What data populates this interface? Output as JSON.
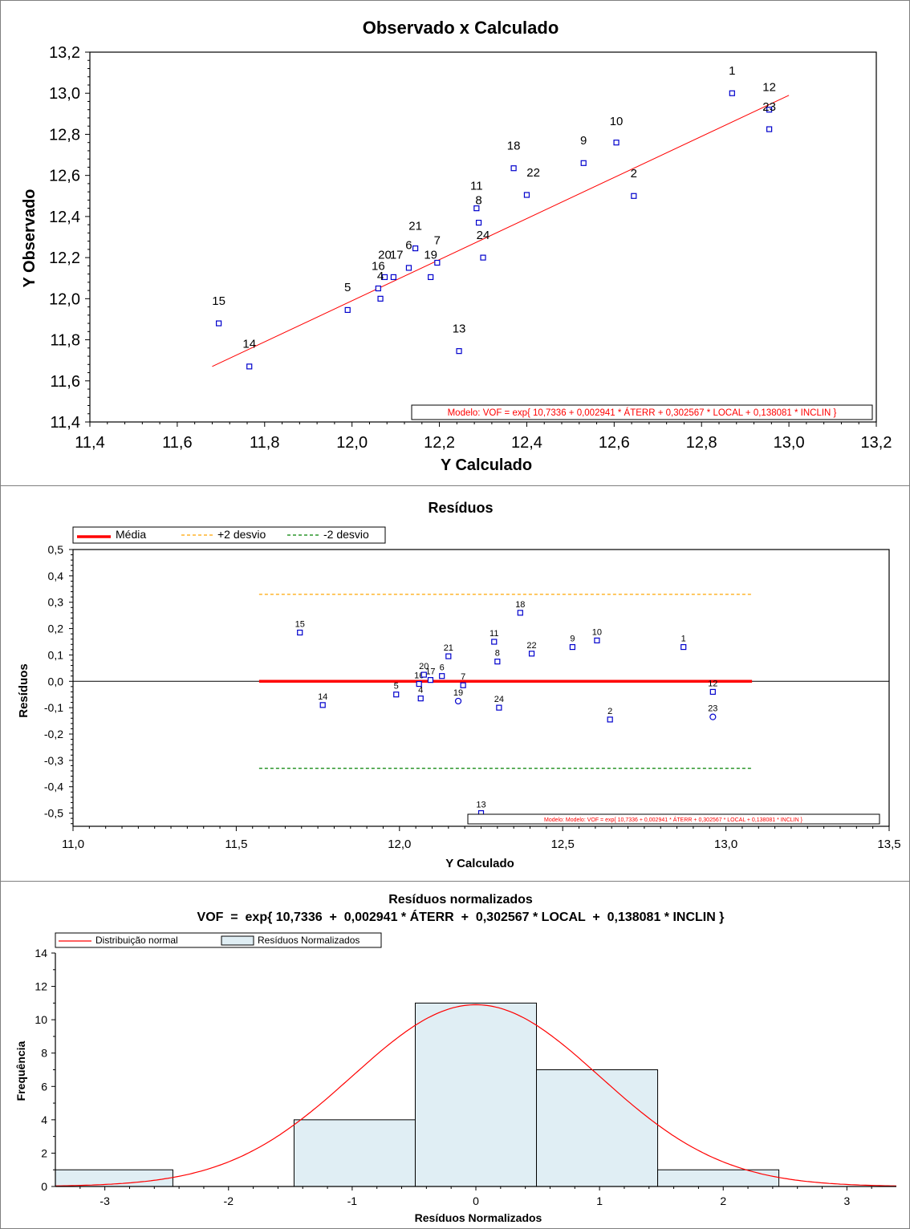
{
  "chart_data": [
    {
      "type": "scatter",
      "title": "Observado x Calculado",
      "xlabel": "Y Calculado",
      "ylabel": "Y Observado",
      "xlim": [
        11.4,
        13.2
      ],
      "ylim": [
        11.4,
        13.2
      ],
      "xticks": [
        "11,4",
        "11,6",
        "11,8",
        "12,0",
        "12,2",
        "12,4",
        "12,6",
        "12,8",
        "13,0",
        "13,2"
      ],
      "yticks": [
        "11,4",
        "11,6",
        "11,8",
        "12,0",
        "12,2",
        "12,4",
        "12,6",
        "12,8",
        "13,0",
        "13,2"
      ],
      "model_label": "Modelo: VOF  =  exp{ 10,7336  +  0,002941 * ÁTERR  +  0,302567 * LOCAL  +  0,138081 * INCLIN }",
      "fit_line": {
        "x": [
          11.68,
          13.0
        ],
        "y": [
          11.67,
          12.99
        ]
      },
      "points": [
        {
          "label": "1",
          "x": 12.87,
          "y": 13.0
        },
        {
          "label": "2",
          "x": 12.645,
          "y": 12.5
        },
        {
          "label": "4",
          "x": 12.065,
          "y": 12.0
        },
        {
          "label": "5",
          "x": 11.99,
          "y": 11.945
        },
        {
          "label": "6",
          "x": 12.13,
          "y": 12.15
        },
        {
          "label": "7",
          "x": 12.195,
          "y": 12.175
        },
        {
          "label": "8",
          "x": 12.29,
          "y": 12.37
        },
        {
          "label": "9",
          "x": 12.53,
          "y": 12.66
        },
        {
          "label": "10",
          "x": 12.605,
          "y": 12.76
        },
        {
          "label": "11",
          "x": 12.285,
          "y": 12.44
        },
        {
          "label": "12",
          "x": 12.955,
          "y": 12.92
        },
        {
          "label": "13",
          "x": 12.245,
          "y": 11.745
        },
        {
          "label": "14",
          "x": 11.765,
          "y": 11.67
        },
        {
          "label": "15",
          "x": 11.695,
          "y": 11.88
        },
        {
          "label": "16",
          "x": 12.06,
          "y": 12.05
        },
        {
          "label": "17",
          "x": 12.095,
          "y": 12.105
        },
        {
          "label": "18",
          "x": 12.37,
          "y": 12.635
        },
        {
          "label": "19",
          "x": 12.18,
          "y": 12.105
        },
        {
          "label": "20",
          "x": 12.075,
          "y": 12.105
        },
        {
          "label": "21",
          "x": 12.145,
          "y": 12.245
        },
        {
          "label": "22",
          "x": 12.4,
          "y": 12.505
        },
        {
          "label": "23",
          "x": 12.955,
          "y": 12.825
        },
        {
          "label": "24",
          "x": 12.3,
          "y": 12.2
        }
      ],
      "point_labels": [
        {
          "text": "1",
          "x": 12.87,
          "y": 13.11
        },
        {
          "text": "12",
          "x": 12.955,
          "y": 13.03
        },
        {
          "text": "23",
          "x": 12.955,
          "y": 12.935
        },
        {
          "text": "10",
          "x": 12.605,
          "y": 12.865
        },
        {
          "text": "9",
          "x": 12.53,
          "y": 12.77
        },
        {
          "text": "18",
          "x": 12.37,
          "y": 12.745
        },
        {
          "text": "22",
          "x": 12.415,
          "y": 12.615
        },
        {
          "text": "2",
          "x": 12.645,
          "y": 12.61
        },
        {
          "text": "11",
          "x": 12.285,
          "y": 12.55
        },
        {
          "text": "8",
          "x": 12.29,
          "y": 12.48
        },
        {
          "text": "21",
          "x": 12.145,
          "y": 12.355
        },
        {
          "text": "7",
          "x": 12.195,
          "y": 12.285
        },
        {
          "text": "24",
          "x": 12.3,
          "y": 12.31
        },
        {
          "text": "6",
          "x": 12.13,
          "y": 12.26
        },
        {
          "text": "20",
          "x": 12.075,
          "y": 12.215
        },
        {
          "text": "17",
          "x": 12.102,
          "y": 12.215
        },
        {
          "text": "19",
          "x": 12.18,
          "y": 12.215
        },
        {
          "text": "16",
          "x": 12.06,
          "y": 12.16
        },
        {
          "text": "4",
          "x": 12.065,
          "y": 12.11
        },
        {
          "text": "5",
          "x": 11.99,
          "y": 12.055
        },
        {
          "text": "15",
          "x": 11.695,
          "y": 11.99
        },
        {
          "text": "13",
          "x": 12.245,
          "y": 11.855
        },
        {
          "text": "14",
          "x": 11.765,
          "y": 11.78
        }
      ],
      "colors": {
        "points": "#0000cc",
        "line": "#ff0000",
        "model_text": "#ff0000"
      }
    },
    {
      "type": "scatter",
      "title": "Resíduos",
      "xlabel": "Y Calculado",
      "ylabel": "Resíduos",
      "xlim": [
        11.0,
        13.5
      ],
      "ylim": [
        -0.55,
        0.5
      ],
      "xticks": [
        "11,0",
        "11,5",
        "12,0",
        "12,5",
        "13,0",
        "13,5"
      ],
      "yticks": [
        "0,5",
        "0,4",
        "0,3",
        "0,2",
        "0,1",
        "0,0",
        "-0,1",
        "-0,2",
        "-0,3",
        "-0,4",
        "-0,5"
      ],
      "legend": {
        "mean": "Média",
        "plus": "+2 desvio",
        "minus": "-2 desvio",
        "position": "top-left"
      },
      "model_label": "Modelo: Modelo: VOF  =  exp{ 10,7336  +  0,002941 * ÁTERR  +  0,302567 * LOCAL  +  0,138081 * INCLIN }",
      "mean_line": {
        "y": 0.0,
        "x": [
          11.57,
          13.08
        ]
      },
      "plus_line": {
        "y": 0.33,
        "x": [
          11.57,
          13.08
        ]
      },
      "minus_line": {
        "y": -0.33,
        "x": [
          11.57,
          13.08
        ]
      },
      "points": [
        {
          "label": "1",
          "x": 12.87,
          "y": 0.13,
          "shape": "square"
        },
        {
          "label": "2",
          "x": 12.645,
          "y": -0.145,
          "shape": "square"
        },
        {
          "label": "4",
          "x": 12.065,
          "y": -0.065,
          "shape": "square"
        },
        {
          "label": "5",
          "x": 11.99,
          "y": -0.05,
          "shape": "square"
        },
        {
          "label": "6",
          "x": 12.13,
          "y": 0.02,
          "shape": "square"
        },
        {
          "label": "7",
          "x": 12.195,
          "y": -0.015,
          "shape": "square"
        },
        {
          "label": "8",
          "x": 12.3,
          "y": 0.075,
          "shape": "square"
        },
        {
          "label": "9",
          "x": 12.53,
          "y": 0.13,
          "shape": "square"
        },
        {
          "label": "10",
          "x": 12.605,
          "y": 0.155,
          "shape": "square"
        },
        {
          "label": "11",
          "x": 12.29,
          "y": 0.15,
          "shape": "square"
        },
        {
          "label": "12",
          "x": 12.96,
          "y": -0.04,
          "shape": "square"
        },
        {
          "label": "13",
          "x": 12.25,
          "y": -0.5,
          "shape": "square"
        },
        {
          "label": "14",
          "x": 11.765,
          "y": -0.09,
          "shape": "square"
        },
        {
          "label": "15",
          "x": 11.695,
          "y": 0.185,
          "shape": "square"
        },
        {
          "label": "16",
          "x": 12.06,
          "y": -0.01,
          "shape": "square"
        },
        {
          "label": "17",
          "x": 12.095,
          "y": 0.005,
          "shape": "square"
        },
        {
          "label": "18",
          "x": 12.37,
          "y": 0.26,
          "shape": "square"
        },
        {
          "label": "19",
          "x": 12.18,
          "y": -0.075,
          "shape": "circle"
        },
        {
          "label": "20",
          "x": 12.075,
          "y": 0.025,
          "shape": "square"
        },
        {
          "label": "21",
          "x": 12.15,
          "y": 0.095,
          "shape": "square"
        },
        {
          "label": "22",
          "x": 12.405,
          "y": 0.105,
          "shape": "square"
        },
        {
          "label": "23",
          "x": 12.96,
          "y": -0.135,
          "shape": "circle"
        },
        {
          "label": "24",
          "x": 12.305,
          "y": -0.1,
          "shape": "square"
        }
      ],
      "colors": {
        "points": "#0000cc",
        "mean": "#ff0000",
        "plus": "#ffa500",
        "minus": "#008000"
      }
    },
    {
      "type": "bar",
      "title": "Resíduos normalizados",
      "subtitle": "VOF  =  exp{ 10,7336  +  0,002941 * ÁTERR  +  0,302567 * LOCAL  +  0,138081 * INCLIN }",
      "xlabel": "Resíduos Normalizados",
      "ylabel": "Frequência",
      "xlim": [
        -3.4,
        3.4
      ],
      "ylim": [
        0,
        14
      ],
      "xticks": [
        "-3",
        "-2",
        "-1",
        "0",
        "1",
        "2",
        "3"
      ],
      "yticks": [
        "0",
        "2",
        "4",
        "6",
        "8",
        "10",
        "12",
        "14"
      ],
      "legend": {
        "curve": "Distribuição normal",
        "bars": "Resíduos Normalizados",
        "position": "top-left"
      },
      "bins": [
        {
          "from": -3.42,
          "to": -2.45,
          "count": 1
        },
        {
          "from": -2.45,
          "to": -1.47,
          "count": 0
        },
        {
          "from": -1.47,
          "to": -0.49,
          "count": 4
        },
        {
          "from": -0.49,
          "to": 0.49,
          "count": 11
        },
        {
          "from": 0.49,
          "to": 1.47,
          "count": 7
        },
        {
          "from": 1.47,
          "to": 2.45,
          "count": 1
        }
      ],
      "normal_curve": {
        "peak": 10.9,
        "mean": 0,
        "sd": 1.0
      },
      "colors": {
        "bars": "#e0eef4",
        "bar_border": "#000000",
        "curve": "#ff0000"
      }
    }
  ]
}
